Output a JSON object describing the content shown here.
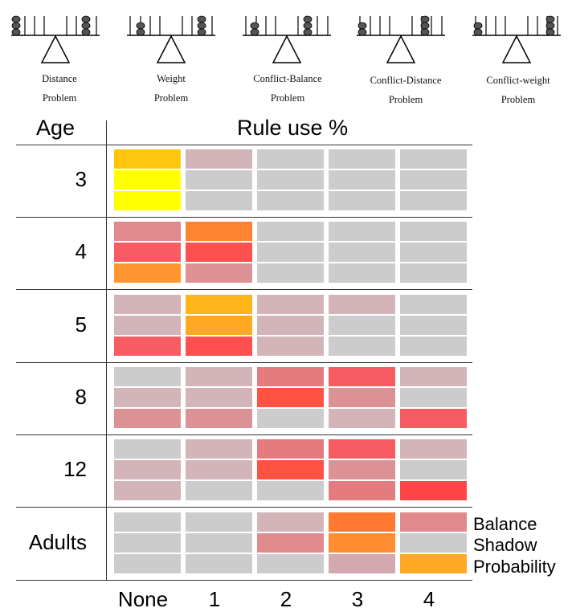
{
  "problems": [
    {
      "line1": "Distance",
      "line2": "Problem"
    },
    {
      "line1": "Weight",
      "line2": "Problem"
    },
    {
      "line1": "Conflict-Balance",
      "line2": "Problem"
    },
    {
      "line1": "Conflict-Distance",
      "line2": "Problem"
    },
    {
      "line1": "Conflict-weight",
      "line2": "Problem"
    }
  ],
  "header": {
    "age": "Age",
    "rule_use": "Rule use %"
  },
  "columns": [
    "None",
    "1",
    "2",
    "3",
    "4"
  ],
  "legend": [
    "Balance",
    "Shadow",
    "Probability"
  ],
  "rows": [
    {
      "age": "3",
      "cells": [
        [
          "#ffc60d",
          "#d3b5b9",
          "#cccccc",
          "#cccccc",
          "#cccccc"
        ],
        [
          "#ffff00",
          "#cccccc",
          "#cccccc",
          "#cccccc",
          "#cccccc"
        ],
        [
          "#ffff00",
          "#cccccc",
          "#cccccc",
          "#cccccc",
          "#cccccc"
        ]
      ]
    },
    {
      "age": "4",
      "cells": [
        [
          "#e08a8e",
          "#ff8330",
          "#cccccc",
          "#cccccc",
          "#cccccc"
        ],
        [
          "#f65c62",
          "#ff5050",
          "#cccccc",
          "#cccccc",
          "#cccccc"
        ],
        [
          "#ff9630",
          "#dc9194",
          "#cccccc",
          "#cccccc",
          "#cccccc"
        ]
      ]
    },
    {
      "age": "5",
      "cells": [
        [
          "#d3b5b9",
          "#ffb41a",
          "#d3b5b9",
          "#d3b5b9",
          "#cccccc"
        ],
        [
          "#d3b5b9",
          "#ffa826",
          "#d3b5b9",
          "#cccccc",
          "#cccccc"
        ],
        [
          "#f65c62",
          "#ff4f4f",
          "#d3b5b9",
          "#cccccc",
          "#cccccc"
        ]
      ]
    },
    {
      "age": "8",
      "cells": [
        [
          "#cccccc",
          "#d3b5b9",
          "#e47b7f",
          "#f65c62",
          "#d3b5b9"
        ],
        [
          "#d3b5b9",
          "#d3b5b9",
          "#ff5242",
          "#dc9194",
          "#cccccc"
        ],
        [
          "#dc9194",
          "#dc9194",
          "#cccccc",
          "#d3b5b9",
          "#f65c62"
        ]
      ]
    },
    {
      "age": "12",
      "cells": [
        [
          "#cccccc",
          "#d3b5b9",
          "#e47b7f",
          "#f65c62",
          "#d3b5b9"
        ],
        [
          "#d3b5b9",
          "#d3b5b9",
          "#ff5242",
          "#dc9194",
          "#cccccc"
        ],
        [
          "#d3b5b9",
          "#cccccc",
          "#cccccc",
          "#e47b7f",
          "#ff4545"
        ]
      ]
    },
    {
      "age": "Adults",
      "cells": [
        [
          "#cccccc",
          "#cccccc",
          "#d3b5b9",
          "#ff7a30",
          "#e08a8e"
        ],
        [
          "#cccccc",
          "#cccccc",
          "#e08a8e",
          "#ff8c30",
          "#cccccc"
        ],
        [
          "#cccccc",
          "#cccccc",
          "#cccccc",
          "#d3a8ae",
          "#ffa826"
        ]
      ]
    }
  ]
}
